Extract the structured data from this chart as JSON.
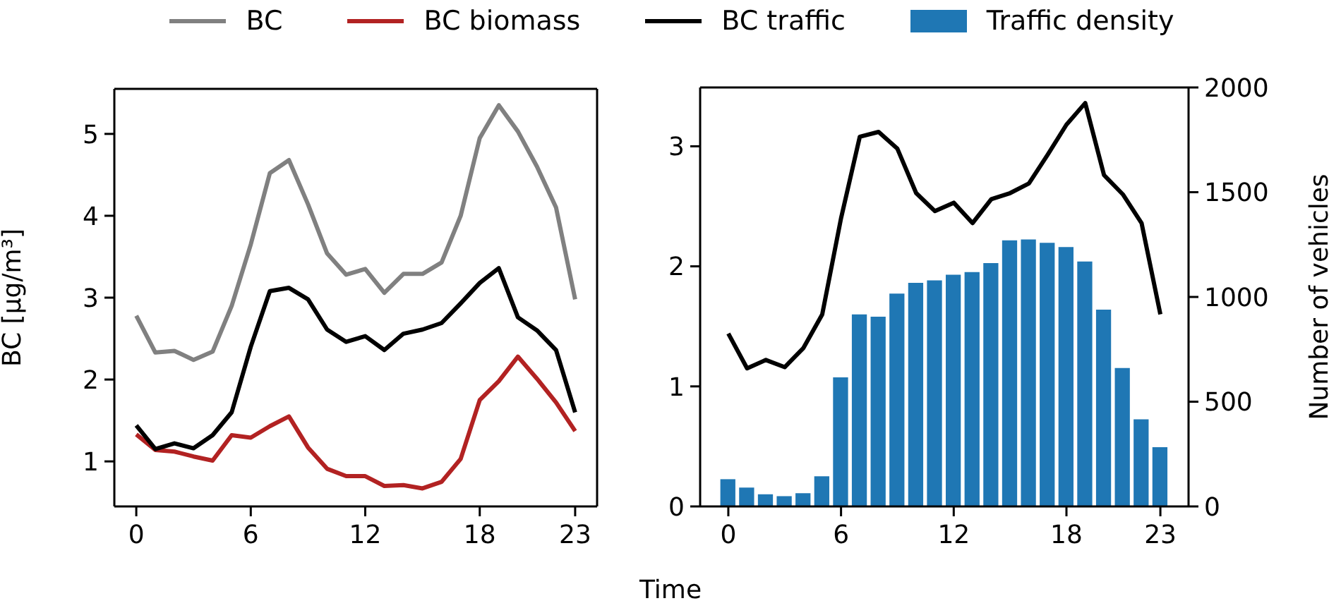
{
  "chart_data": [
    {
      "type": "line",
      "xlabel": "Time",
      "ylabel": "BC [µg/m³]",
      "x": [
        0,
        1,
        2,
        3,
        4,
        5,
        6,
        7,
        8,
        9,
        10,
        11,
        12,
        13,
        14,
        15,
        16,
        17,
        18,
        19,
        20,
        21,
        22,
        23
      ],
      "xlim": [
        -1.15,
        24.15
      ],
      "xticks": [
        0,
        6,
        12,
        18,
        23
      ],
      "ylim": [
        0.45,
        5.55
      ],
      "yticks": [
        1,
        2,
        3,
        4,
        5
      ],
      "marker": "none",
      "line_style": "solid",
      "legend": "top",
      "series": [
        {
          "name": "BC",
          "color": "#808080",
          "values": [
            2.78,
            2.33,
            2.35,
            2.24,
            2.34,
            2.9,
            3.65,
            4.52,
            4.68,
            4.14,
            3.54,
            3.28,
            3.35,
            3.06,
            3.29,
            3.29,
            3.43,
            4.0,
            4.95,
            5.35,
            5.03,
            4.6,
            4.1,
            2.98
          ]
        },
        {
          "name": "BC biomass",
          "color": "#b22222",
          "values": [
            1.33,
            1.14,
            1.12,
            1.06,
            1.01,
            1.32,
            1.29,
            1.43,
            1.55,
            1.17,
            0.91,
            0.82,
            0.82,
            0.7,
            0.71,
            0.67,
            0.75,
            1.03,
            1.75,
            1.98,
            2.28,
            2.01,
            1.72,
            1.37
          ]
        },
        {
          "name": "BC traffic",
          "color": "#000000",
          "values": [
            1.44,
            1.15,
            1.22,
            1.16,
            1.32,
            1.6,
            2.4,
            3.08,
            3.12,
            2.98,
            2.61,
            2.46,
            2.53,
            2.36,
            2.56,
            2.61,
            2.69,
            2.93,
            3.18,
            3.36,
            2.76,
            2.6,
            2.36,
            1.6
          ]
        }
      ]
    },
    {
      "type": "line",
      "y2label": "Number of vehicles",
      "x": [
        0,
        1,
        2,
        3,
        4,
        5,
        6,
        7,
        8,
        9,
        10,
        11,
        12,
        13,
        14,
        15,
        16,
        17,
        18,
        19,
        20,
        21,
        22,
        23
      ],
      "xlim": [
        -1.5,
        24.5
      ],
      "xticks": [
        0,
        6,
        12,
        18,
        23
      ],
      "ylim": [
        0,
        3.49
      ],
      "yticks": [
        0,
        1,
        2,
        3
      ],
      "y2lim": [
        0,
        2000
      ],
      "y2ticks": [
        0,
        500,
        1000,
        1500,
        2000
      ],
      "marker": "none",
      "line_style": "solid",
      "legend": "top",
      "series": [
        {
          "name": "Traffic density",
          "type": "bar",
          "axis": "y2",
          "color": "#1f77b4",
          "values": [
            130,
            90,
            58,
            49,
            63,
            144,
            616,
            917,
            906,
            1016,
            1067,
            1079,
            1106,
            1119,
            1162,
            1270,
            1274,
            1258,
            1238,
            1169,
            939,
            661,
            416,
            283
          ]
        },
        {
          "name": "BC traffic",
          "color": "#000000",
          "values": [
            1.44,
            1.15,
            1.22,
            1.16,
            1.32,
            1.6,
            2.4,
            3.08,
            3.12,
            2.98,
            2.61,
            2.46,
            2.53,
            2.36,
            2.56,
            2.61,
            2.69,
            2.93,
            3.18,
            3.36,
            2.76,
            2.6,
            2.36,
            1.6
          ]
        }
      ]
    }
  ]
}
